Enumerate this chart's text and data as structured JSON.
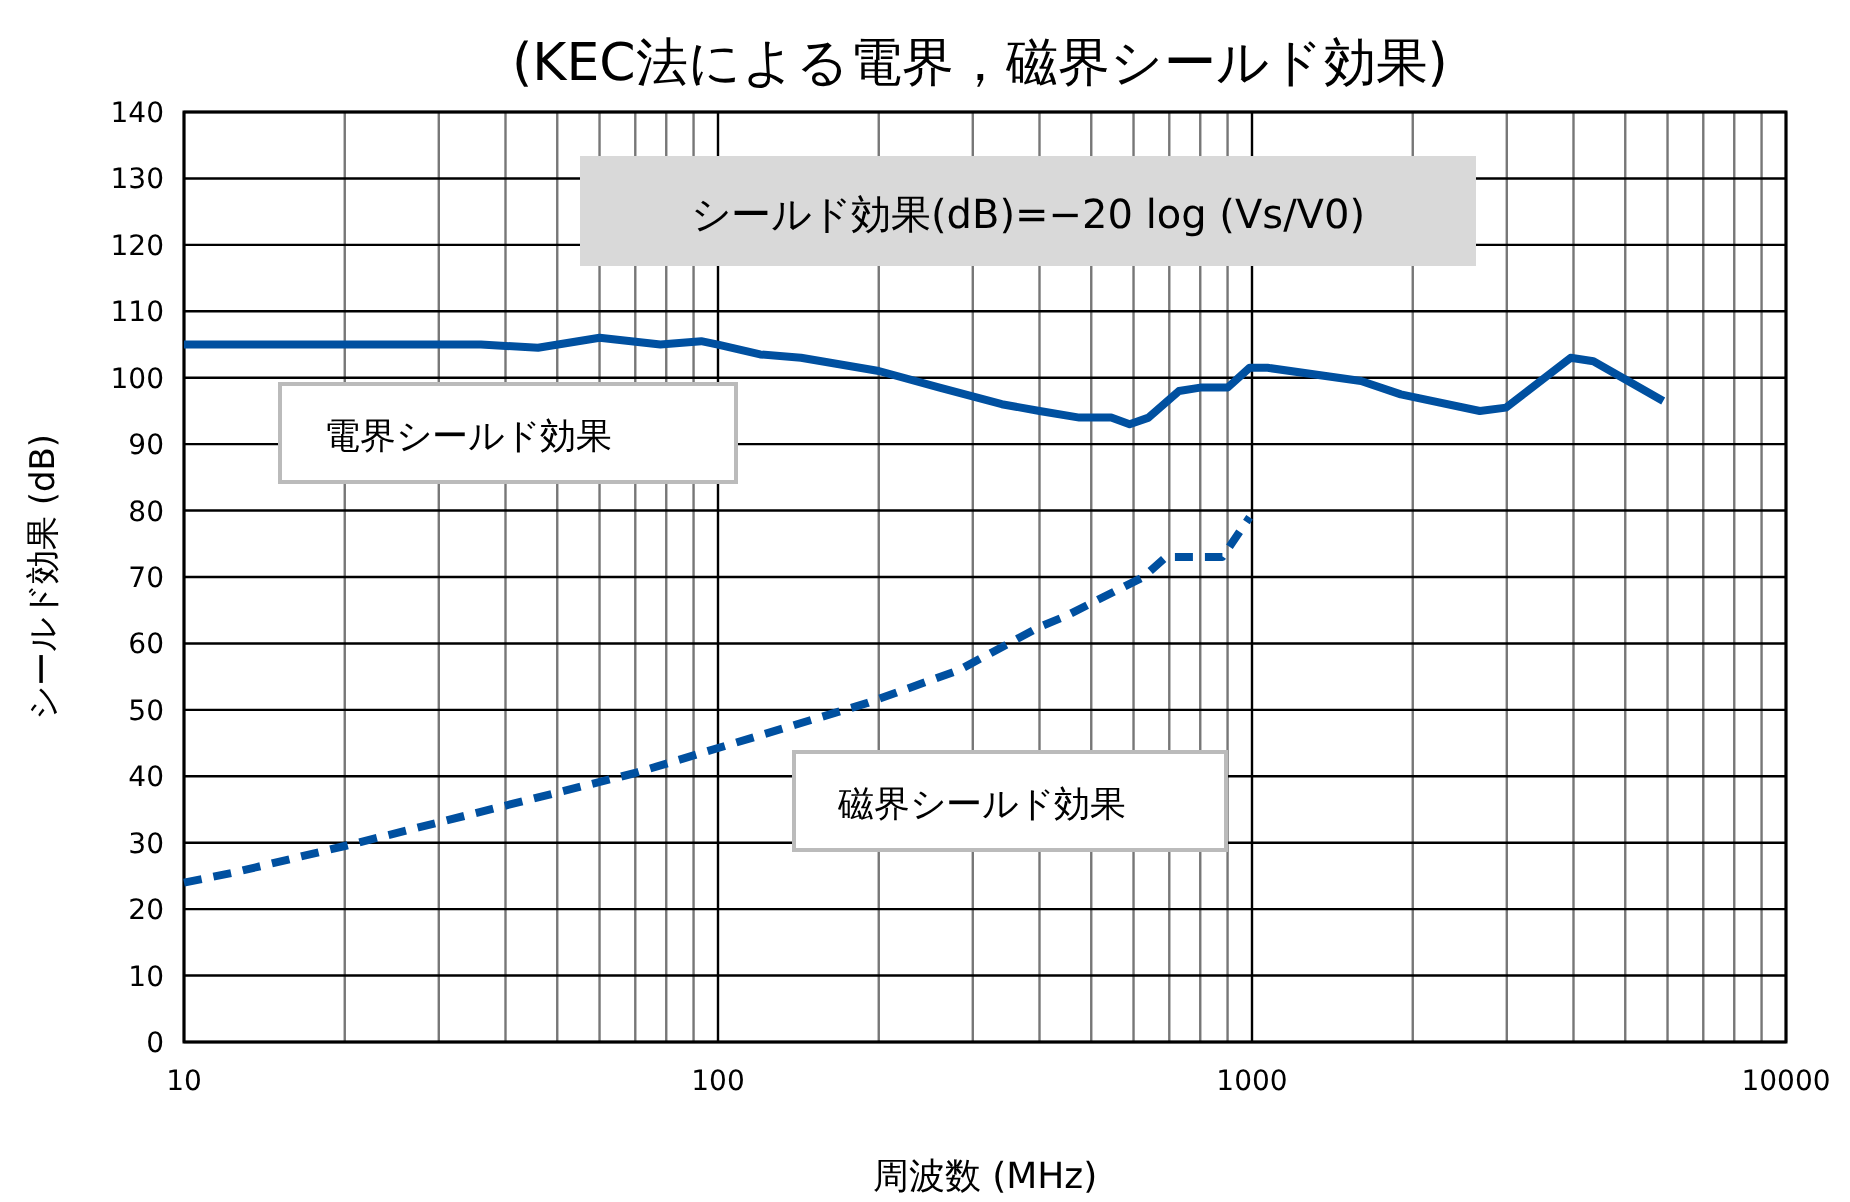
{
  "chart_data": {
    "type": "line",
    "title": "(KEC法による電界，磁界シールド効果)",
    "xlabel": "周波数 (MHz)",
    "ylabel": "シールド効果 (dB)",
    "annotations": [
      "シールド効果(dB)=−20 log (Vs/V0)"
    ],
    "log": "x",
    "xlim": [
      10,
      10000
    ],
    "xticks": [
      10,
      100,
      1000,
      10000
    ],
    "ylim": [
      0,
      140
    ],
    "yticks": [
      0,
      10,
      20,
      30,
      40,
      50,
      60,
      70,
      80,
      90,
      100,
      110,
      120,
      130,
      140
    ],
    "grid": true,
    "legend": false,
    "marker": "none",
    "series": [
      {
        "name": "電界シールド効果",
        "color": "#0050a0",
        "line_style": "solid",
        "x": [
          10,
          36,
          46,
          60,
          78,
          93,
          100,
          120,
          143,
          200,
          260,
          340,
          400,
          475,
          545,
          590,
          640,
          730,
          800,
          900,
          990,
          1070,
          1600,
          1900,
          2670,
          2990,
          3950,
          4360,
          5890
        ],
        "values": [
          105,
          105,
          104.5,
          106,
          105,
          105.5,
          105,
          103.5,
          103,
          101,
          98.5,
          96,
          95,
          94,
          94,
          93,
          94,
          98,
          98.5,
          98.5,
          101.5,
          101.5,
          99.5,
          97.5,
          95,
          95.5,
          103,
          102.5,
          96.5
        ]
      },
      {
        "name": "磁界シールド効果",
        "color": "#0050a0",
        "line_style": "dashed",
        "x": [
          10,
          12.4,
          20,
          70,
          190,
          283,
          400,
          445,
          527,
          626,
          690,
          880,
          990
        ],
        "values": [
          24,
          25.5,
          29.5,
          40.5,
          51,
          56,
          62.5,
          64,
          67,
          70,
          73,
          73,
          79
        ]
      }
    ]
  }
}
